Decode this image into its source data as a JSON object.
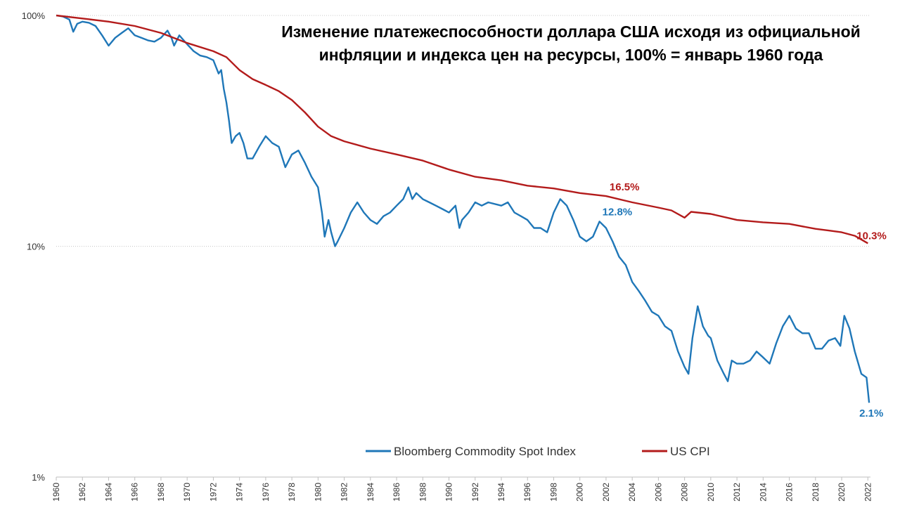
{
  "chart_data": {
    "type": "line",
    "title_lines": [
      "Изменение платежеспособности доллара США исходя из официальной",
      "инфляции и индекса цен на ресурсы, 100% = январь 1960 года"
    ],
    "y_scale": "log",
    "ylim": [
      1,
      100
    ],
    "xlim": [
      1960,
      2022.2
    ],
    "y_ticks": [
      {
        "value": 100,
        "label": "100%"
      },
      {
        "value": 10,
        "label": "10%"
      },
      {
        "value": 1,
        "label": "1%"
      }
    ],
    "x_ticks": [
      "1960",
      "1962",
      "1964",
      "1966",
      "1968",
      "1970",
      "1972",
      "1974",
      "1976",
      "1978",
      "1980",
      "1982",
      "1984",
      "1986",
      "1988",
      "1990",
      "1992",
      "1994",
      "1996",
      "1998",
      "2000",
      "2002",
      "2004",
      "2006",
      "2008",
      "2010",
      "2012",
      "2014",
      "2016",
      "2018",
      "2020",
      "2022"
    ],
    "grid": "horizontal dotted",
    "legend_position": "bottom-center",
    "series": [
      {
        "name": "Bloomberg Commodity Spot Index",
        "color": "#1F77B8",
        "points": [
          [
            1960,
            100
          ],
          [
            1960.5,
            99
          ],
          [
            1961,
            96
          ],
          [
            1961.3,
            85
          ],
          [
            1961.6,
            92
          ],
          [
            1962,
            94
          ],
          [
            1962.5,
            93
          ],
          [
            1963,
            90
          ],
          [
            1963.5,
            82
          ],
          [
            1964,
            74
          ],
          [
            1964.5,
            80
          ],
          [
            1965,
            84
          ],
          [
            1965.5,
            88
          ],
          [
            1966,
            82
          ],
          [
            1966.5,
            80
          ],
          [
            1967,
            78
          ],
          [
            1967.5,
            77
          ],
          [
            1968,
            80
          ],
          [
            1968.5,
            86
          ],
          [
            1968.8,
            80
          ],
          [
            1969,
            74
          ],
          [
            1969.4,
            82
          ],
          [
            1970,
            75
          ],
          [
            1970.5,
            70
          ],
          [
            1971,
            67
          ],
          [
            1971.5,
            66
          ],
          [
            1972,
            64
          ],
          [
            1972.4,
            56
          ],
          [
            1972.6,
            58
          ],
          [
            1972.8,
            48
          ],
          [
            1973,
            42
          ],
          [
            1973.2,
            35
          ],
          [
            1973.4,
            28
          ],
          [
            1973.7,
            30
          ],
          [
            1974,
            31
          ],
          [
            1974.3,
            28
          ],
          [
            1974.6,
            24
          ],
          [
            1975,
            24
          ],
          [
            1975.5,
            27
          ],
          [
            1976,
            30
          ],
          [
            1976.5,
            28
          ],
          [
            1977,
            27
          ],
          [
            1977.5,
            22
          ],
          [
            1978,
            25
          ],
          [
            1978.5,
            26
          ],
          [
            1979,
            23
          ],
          [
            1979.5,
            20
          ],
          [
            1980,
            18
          ],
          [
            1980.3,
            14
          ],
          [
            1980.5,
            11
          ],
          [
            1980.8,
            13
          ],
          [
            1981,
            11.5
          ],
          [
            1981.3,
            10
          ],
          [
            1981.5,
            10.5
          ],
          [
            1982,
            12
          ],
          [
            1982.5,
            14
          ],
          [
            1983,
            15.5
          ],
          [
            1983.5,
            14
          ],
          [
            1984,
            13
          ],
          [
            1984.5,
            12.5
          ],
          [
            1985,
            13.5
          ],
          [
            1985.5,
            14
          ],
          [
            1986,
            15
          ],
          [
            1986.5,
            16
          ],
          [
            1986.9,
            18
          ],
          [
            1987.2,
            16
          ],
          [
            1987.5,
            17
          ],
          [
            1988,
            16
          ],
          [
            1988.5,
            15.5
          ],
          [
            1989,
            15
          ],
          [
            1989.5,
            14.5
          ],
          [
            1990,
            14
          ],
          [
            1990.5,
            15
          ],
          [
            1990.8,
            12
          ],
          [
            1991,
            13
          ],
          [
            1991.5,
            14
          ],
          [
            1992,
            15.5
          ],
          [
            1992.5,
            15
          ],
          [
            1993,
            15.5
          ],
          [
            1994,
            15
          ],
          [
            1994.5,
            15.5
          ],
          [
            1995,
            14
          ],
          [
            1995.5,
            13.5
          ],
          [
            1996,
            13
          ],
          [
            1996.5,
            12
          ],
          [
            1997,
            12
          ],
          [
            1997.5,
            11.5
          ],
          [
            1998,
            14
          ],
          [
            1998.5,
            16
          ],
          [
            1999,
            15
          ],
          [
            1999.5,
            13
          ],
          [
            2000,
            11
          ],
          [
            2000.5,
            10.5
          ],
          [
            2001,
            11
          ],
          [
            2001.5,
            12.8
          ],
          [
            2002,
            12
          ],
          [
            2002.5,
            10.5
          ],
          [
            2003,
            9
          ],
          [
            2003.5,
            8.3
          ],
          [
            2004,
            7
          ],
          [
            2004.5,
            6.4
          ],
          [
            2005,
            5.8
          ],
          [
            2005.5,
            5.2
          ],
          [
            2006,
            5
          ],
          [
            2006.5,
            4.5
          ],
          [
            2007,
            4.3
          ],
          [
            2007.5,
            3.5
          ],
          [
            2008,
            3
          ],
          [
            2008.3,
            2.8
          ],
          [
            2008.6,
            4
          ],
          [
            2009,
            5.5
          ],
          [
            2009.4,
            4.5
          ],
          [
            2009.8,
            4.1
          ],
          [
            2010,
            4
          ],
          [
            2010.5,
            3.2
          ],
          [
            2011,
            2.8
          ],
          [
            2011.3,
            2.6
          ],
          [
            2011.6,
            3.2
          ],
          [
            2012,
            3.1
          ],
          [
            2012.5,
            3.1
          ],
          [
            2013,
            3.2
          ],
          [
            2013.5,
            3.5
          ],
          [
            2014,
            3.3
          ],
          [
            2014.5,
            3.1
          ],
          [
            2015,
            3.8
          ],
          [
            2015.5,
            4.5
          ],
          [
            2016,
            5
          ],
          [
            2016.5,
            4.4
          ],
          [
            2017,
            4.2
          ],
          [
            2017.5,
            4.2
          ],
          [
            2018,
            3.6
          ],
          [
            2018.5,
            3.6
          ],
          [
            2019,
            3.9
          ],
          [
            2019.5,
            4
          ],
          [
            2019.9,
            3.7
          ],
          [
            2020.2,
            5
          ],
          [
            2020.6,
            4.4
          ],
          [
            2021,
            3.5
          ],
          [
            2021.5,
            2.8
          ],
          [
            2021.9,
            2.7
          ],
          [
            2022.1,
            2.1
          ]
        ]
      },
      {
        "name": "US CPI",
        "color": "#B31B1B",
        "points": [
          [
            1960,
            100
          ],
          [
            1962,
            97
          ],
          [
            1964,
            94
          ],
          [
            1966,
            90
          ],
          [
            1968,
            84
          ],
          [
            1970,
            76
          ],
          [
            1972,
            70
          ],
          [
            1973,
            66
          ],
          [
            1974,
            58
          ],
          [
            1975,
            53
          ],
          [
            1976,
            50
          ],
          [
            1977,
            47
          ],
          [
            1978,
            43
          ],
          [
            1979,
            38
          ],
          [
            1980,
            33
          ],
          [
            1981,
            30
          ],
          [
            1982,
            28.5
          ],
          [
            1984,
            26.5
          ],
          [
            1986,
            25
          ],
          [
            1988,
            23.5
          ],
          [
            1990,
            21.5
          ],
          [
            1992,
            20
          ],
          [
            1994,
            19.3
          ],
          [
            1996,
            18.3
          ],
          [
            1998,
            17.8
          ],
          [
            2000,
            17
          ],
          [
            2002,
            16.5
          ],
          [
            2004,
            15.5
          ],
          [
            2006,
            14.7
          ],
          [
            2007,
            14.3
          ],
          [
            2008,
            13.3
          ],
          [
            2008.5,
            14.1
          ],
          [
            2010,
            13.8
          ],
          [
            2012,
            13
          ],
          [
            2014,
            12.7
          ],
          [
            2016,
            12.5
          ],
          [
            2018,
            11.9
          ],
          [
            2019,
            11.7
          ],
          [
            2020,
            11.5
          ],
          [
            2021,
            11.1
          ],
          [
            2022,
            10.3
          ]
        ]
      }
    ],
    "annotations": [
      {
        "text": "16.5%",
        "series": "US CPI",
        "at_x": 2002,
        "color": "#B31B1B"
      },
      {
        "text": "12.8%",
        "series": "Bloomberg Commodity Spot Index",
        "at_x": 2001.5,
        "color": "#1F77B8"
      },
      {
        "text": "10.3%",
        "series": "US CPI",
        "at_x": 2022,
        "color": "#B31B1B"
      },
      {
        "text": "2.1%",
        "series": "Bloomberg Commodity Spot Index",
        "at_x": 2022.1,
        "color": "#1F77B8"
      }
    ]
  }
}
